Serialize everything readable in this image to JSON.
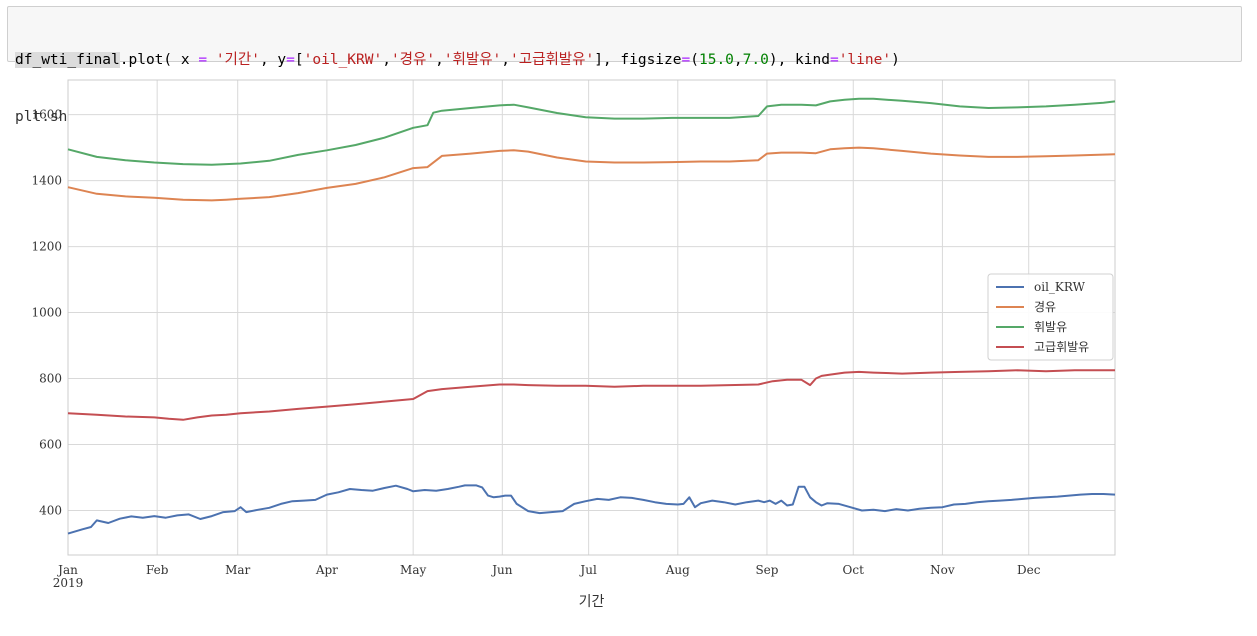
{
  "code_cell": {
    "line1": [
      {
        "text": "df_wti_final",
        "cls": "tok-var hl"
      },
      {
        "text": ".plot( x ",
        "cls": "tok-plain"
      },
      {
        "text": "=",
        "cls": "tok-op"
      },
      {
        "text": " ",
        "cls": "tok-plain"
      },
      {
        "text": "'기간'",
        "cls": "tok-str"
      },
      {
        "text": ", y",
        "cls": "tok-plain"
      },
      {
        "text": "=",
        "cls": "tok-op"
      },
      {
        "text": "[",
        "cls": "tok-plain"
      },
      {
        "text": "'oil_KRW'",
        "cls": "tok-str"
      },
      {
        "text": ",",
        "cls": "tok-plain"
      },
      {
        "text": "'경유'",
        "cls": "tok-str"
      },
      {
        "text": ",",
        "cls": "tok-plain"
      },
      {
        "text": "'휘발유'",
        "cls": "tok-str"
      },
      {
        "text": ",",
        "cls": "tok-plain"
      },
      {
        "text": "'고급휘발유'",
        "cls": "tok-str"
      },
      {
        "text": "], figsize",
        "cls": "tok-plain"
      },
      {
        "text": "=",
        "cls": "tok-op"
      },
      {
        "text": "(",
        "cls": "tok-plain"
      },
      {
        "text": "15.0",
        "cls": "tok-num"
      },
      {
        "text": ",",
        "cls": "tok-plain"
      },
      {
        "text": "7.0",
        "cls": "tok-num"
      },
      {
        "text": "), kind",
        "cls": "tok-plain"
      },
      {
        "text": "=",
        "cls": "tok-op"
      },
      {
        "text": "'line'",
        "cls": "tok-str"
      },
      {
        "text": ")",
        "cls": "tok-plain"
      }
    ],
    "line2": "plt.show()"
  },
  "chart_data": {
    "type": "line",
    "xlabel": "기간",
    "ylabel": "",
    "xlim": [
      0,
      364
    ],
    "ylim": [
      265,
      1705
    ],
    "grid": true,
    "legend_position": "center-right",
    "x_ticks": [
      {
        "label": "Jan",
        "sub": "2019",
        "x": 0
      },
      {
        "label": "Feb",
        "x": 31
      },
      {
        "label": "Mar",
        "x": 59
      },
      {
        "label": "Apr",
        "x": 90
      },
      {
        "label": "May",
        "x": 120
      },
      {
        "label": "Jun",
        "x": 151
      },
      {
        "label": "Jul",
        "x": 181
      },
      {
        "label": "Aug",
        "x": 212
      },
      {
        "label": "Sep",
        "x": 243
      },
      {
        "label": "Oct",
        "x": 273
      },
      {
        "label": "Nov",
        "x": 304
      },
      {
        "label": "Dec",
        "x": 334
      }
    ],
    "y_ticks": [
      400,
      600,
      800,
      1000,
      1200,
      1400,
      1600
    ],
    "series": [
      {
        "name": "oil_KRW",
        "color": "#4c72b0",
        "x": [
          0,
          5,
          8,
          10,
          14,
          18,
          22,
          26,
          30,
          34,
          38,
          42,
          46,
          50,
          54,
          58,
          60,
          62,
          66,
          70,
          74,
          78,
          82,
          86,
          90,
          94,
          98,
          102,
          106,
          110,
          114,
          118,
          120,
          124,
          128,
          132,
          136,
          138,
          140,
          142,
          144,
          146,
          148,
          150,
          152,
          154,
          156,
          160,
          164,
          168,
          172,
          176,
          180,
          184,
          188,
          192,
          196,
          200,
          204,
          208,
          212,
          214,
          216,
          218,
          220,
          224,
          228,
          232,
          236,
          240,
          242,
          244,
          246,
          248,
          250,
          252,
          254,
          256,
          258,
          260,
          262,
          264,
          268,
          272,
          276,
          280,
          284,
          288,
          292,
          296,
          300,
          304,
          308,
          312,
          316,
          320,
          324,
          328,
          332,
          336,
          340,
          344,
          348,
          352,
          356,
          360,
          364
        ],
        "y": [
          330,
          343,
          350,
          370,
          362,
          375,
          382,
          378,
          383,
          378,
          385,
          388,
          374,
          383,
          395,
          398,
          410,
          395,
          402,
          408,
          420,
          428,
          430,
          432,
          448,
          455,
          465,
          462,
          460,
          468,
          475,
          465,
          458,
          462,
          460,
          465,
          472,
          476,
          476,
          476,
          470,
          445,
          440,
          442,
          445,
          445,
          420,
          398,
          392,
          395,
          398,
          420,
          428,
          435,
          432,
          440,
          438,
          432,
          425,
          420,
          418,
          420,
          440,
          410,
          422,
          430,
          425,
          418,
          425,
          430,
          425,
          430,
          420,
          430,
          415,
          418,
          472,
          472,
          440,
          425,
          415,
          422,
          420,
          410,
          400,
          402,
          398,
          404,
          400,
          405,
          408,
          410,
          418,
          420,
          425,
          428,
          430,
          432,
          435,
          438,
          440,
          442,
          445,
          448,
          450,
          450,
          448
        ]
      },
      {
        "name": "경유",
        "color": "#dd8452",
        "x": [
          0,
          10,
          20,
          30,
          40,
          50,
          55,
          60,
          70,
          80,
          90,
          100,
          110,
          120,
          125,
          130,
          140,
          150,
          155,
          160,
          170,
          180,
          190,
          200,
          210,
          220,
          230,
          240,
          243,
          248,
          255,
          260,
          265,
          270,
          275,
          280,
          290,
          300,
          310,
          320,
          330,
          340,
          350,
          364
        ],
        "y": [
          1380,
          1360,
          1352,
          1348,
          1342,
          1340,
          1342,
          1345,
          1350,
          1362,
          1378,
          1390,
          1410,
          1438,
          1441,
          1475,
          1482,
          1490,
          1492,
          1488,
          1470,
          1458,
          1455,
          1455,
          1456,
          1458,
          1458,
          1462,
          1482,
          1485,
          1485,
          1483,
          1495,
          1498,
          1500,
          1498,
          1490,
          1482,
          1476,
          1472,
          1472,
          1474,
          1476,
          1480
        ]
      },
      {
        "name": "휘발유",
        "color": "#55a868",
        "x": [
          0,
          10,
          20,
          30,
          40,
          50,
          55,
          60,
          70,
          80,
          90,
          100,
          110,
          120,
          125,
          127,
          130,
          140,
          150,
          155,
          160,
          170,
          180,
          190,
          200,
          210,
          220,
          230,
          240,
          243,
          248,
          255,
          260,
          265,
          270,
          275,
          280,
          290,
          300,
          310,
          320,
          330,
          340,
          350,
          360,
          364
        ],
        "y": [
          1495,
          1472,
          1462,
          1455,
          1450,
          1448,
          1450,
          1452,
          1460,
          1478,
          1492,
          1508,
          1530,
          1560,
          1568,
          1606,
          1612,
          1620,
          1628,
          1630,
          1622,
          1605,
          1592,
          1588,
          1588,
          1590,
          1590,
          1590,
          1596,
          1625,
          1630,
          1630,
          1628,
          1640,
          1645,
          1648,
          1648,
          1642,
          1635,
          1625,
          1620,
          1622,
          1625,
          1630,
          1636,
          1640
        ]
      },
      {
        "name": "고급휘발유",
        "color": "#c44e52",
        "x": [
          0,
          10,
          20,
          30,
          35,
          40,
          45,
          50,
          55,
          60,
          70,
          80,
          90,
          100,
          110,
          120,
          125,
          130,
          140,
          150,
          155,
          160,
          170,
          180,
          190,
          200,
          210,
          220,
          230,
          240,
          245,
          250,
          255,
          258,
          260,
          262,
          265,
          270,
          275,
          280,
          290,
          300,
          310,
          320,
          330,
          340,
          350,
          364
        ],
        "y": [
          695,
          690,
          685,
          682,
          678,
          675,
          682,
          688,
          690,
          695,
          700,
          708,
          715,
          722,
          730,
          738,
          762,
          768,
          775,
          782,
          782,
          780,
          778,
          778,
          775,
          778,
          778,
          778,
          780,
          782,
          792,
          796,
          796,
          780,
          800,
          808,
          812,
          818,
          820,
          818,
          815,
          818,
          820,
          822,
          825,
          822,
          825,
          825
        ]
      }
    ]
  }
}
